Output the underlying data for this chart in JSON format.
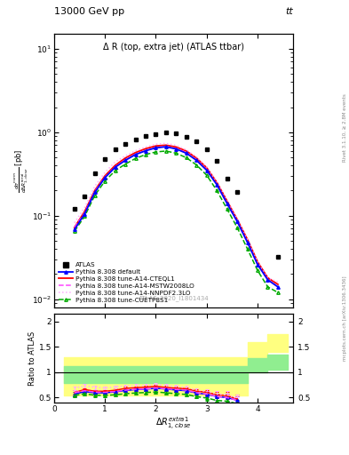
{
  "title_top": "13000 GeV pp",
  "title_top_right": "tt",
  "plot_title": "Δ R (top, extra jet) (ATLAS ttbar)",
  "ylabel_ratio": "Ratio to ATLAS",
  "watermark": "ATLAS_2020_I1801434",
  "rivet_label": "Rivet 3.1.10, ≥ 2.8M events",
  "mcplots_label": "mcplots.cern.ch [arXiv:1306.3436]",
  "atlas_x": [
    0.4,
    0.6,
    0.8,
    1.0,
    1.2,
    1.4,
    1.6,
    1.8,
    2.0,
    2.2,
    2.4,
    2.6,
    2.8,
    3.0,
    3.2,
    3.4,
    3.6,
    4.4
  ],
  "atlas_y": [
    0.12,
    0.17,
    0.32,
    0.48,
    0.62,
    0.72,
    0.82,
    0.9,
    0.95,
    1.0,
    0.97,
    0.88,
    0.78,
    0.62,
    0.45,
    0.28,
    0.19,
    0.032
  ],
  "x_data": [
    0.4,
    0.6,
    0.8,
    1.0,
    1.2,
    1.4,
    1.6,
    1.8,
    2.0,
    2.2,
    2.4,
    2.6,
    2.8,
    3.0,
    3.2,
    3.4,
    3.6,
    3.8,
    4.0,
    4.2,
    4.4
  ],
  "default_y": [
    0.068,
    0.105,
    0.19,
    0.285,
    0.38,
    0.46,
    0.54,
    0.6,
    0.65,
    0.67,
    0.63,
    0.56,
    0.46,
    0.35,
    0.235,
    0.14,
    0.085,
    0.048,
    0.026,
    0.017,
    0.014
  ],
  "cteql1_y": [
    0.072,
    0.112,
    0.2,
    0.3,
    0.4,
    0.49,
    0.57,
    0.635,
    0.685,
    0.7,
    0.665,
    0.595,
    0.49,
    0.375,
    0.25,
    0.15,
    0.09,
    0.052,
    0.028,
    0.018,
    0.015
  ],
  "mstw_y": [
    0.072,
    0.108,
    0.195,
    0.29,
    0.385,
    0.465,
    0.545,
    0.605,
    0.655,
    0.675,
    0.64,
    0.57,
    0.465,
    0.355,
    0.235,
    0.14,
    0.085,
    0.048,
    0.026,
    0.017,
    0.014
  ],
  "nnpdf_y": [
    0.082,
    0.125,
    0.225,
    0.33,
    0.44,
    0.52,
    0.6,
    0.665,
    0.72,
    0.735,
    0.695,
    0.615,
    0.505,
    0.385,
    0.255,
    0.155,
    0.092,
    0.052,
    0.028,
    0.018,
    0.016
  ],
  "cuetp_y": [
    0.065,
    0.098,
    0.175,
    0.26,
    0.345,
    0.415,
    0.485,
    0.54,
    0.58,
    0.595,
    0.56,
    0.495,
    0.405,
    0.305,
    0.2,
    0.12,
    0.072,
    0.04,
    0.022,
    0.014,
    0.012
  ],
  "ratio_x": [
    0.4,
    0.6,
    0.8,
    1.0,
    1.2,
    1.4,
    1.6,
    1.8,
    2.0,
    2.2,
    2.4,
    2.6,
    2.8,
    3.0,
    3.2,
    3.4,
    3.6
  ],
  "ratio_default": [
    0.567,
    0.618,
    0.594,
    0.594,
    0.613,
    0.639,
    0.659,
    0.667,
    0.684,
    0.67,
    0.649,
    0.636,
    0.59,
    0.565,
    0.522,
    0.5,
    0.447
  ],
  "ratio_cteql1": [
    0.6,
    0.659,
    0.625,
    0.625,
    0.645,
    0.681,
    0.695,
    0.706,
    0.721,
    0.7,
    0.685,
    0.676,
    0.628,
    0.605,
    0.556,
    0.536,
    0.474
  ],
  "ratio_mstw": [
    0.6,
    0.635,
    0.609,
    0.604,
    0.621,
    0.646,
    0.665,
    0.672,
    0.689,
    0.675,
    0.66,
    0.648,
    0.596,
    0.573,
    0.522,
    0.5,
    0.447
  ],
  "ratio_nnpdf": [
    0.683,
    0.735,
    0.703,
    0.688,
    0.71,
    0.722,
    0.732,
    0.739,
    0.758,
    0.735,
    0.716,
    0.699,
    0.647,
    0.621,
    0.567,
    0.554,
    0.484
  ],
  "ratio_cuetp": [
    0.542,
    0.576,
    0.547,
    0.542,
    0.556,
    0.576,
    0.591,
    0.6,
    0.611,
    0.595,
    0.577,
    0.562,
    0.519,
    0.492,
    0.444,
    0.429,
    0.379
  ],
  "ratio_yerr_default": [
    0.04,
    0.03,
    0.03,
    0.03,
    0.03,
    0.03,
    0.03,
    0.03,
    0.03,
    0.03,
    0.03,
    0.03,
    0.03,
    0.05,
    0.06,
    0.07,
    0.08
  ],
  "ratio_yerr_cteql1": [
    0.04,
    0.03,
    0.03,
    0.03,
    0.03,
    0.03,
    0.03,
    0.03,
    0.03,
    0.03,
    0.03,
    0.03,
    0.03,
    0.05,
    0.06,
    0.07,
    0.08
  ],
  "ratio_yerr_mstw": [
    0.04,
    0.03,
    0.03,
    0.03,
    0.03,
    0.03,
    0.03,
    0.03,
    0.03,
    0.03,
    0.03,
    0.03,
    0.03,
    0.05,
    0.06,
    0.07,
    0.08
  ],
  "ratio_yerr_nnpdf": [
    0.04,
    0.03,
    0.03,
    0.03,
    0.03,
    0.03,
    0.03,
    0.03,
    0.03,
    0.03,
    0.03,
    0.03,
    0.03,
    0.05,
    0.06,
    0.07,
    0.08
  ],
  "ratio_yerr_cuetp": [
    0.04,
    0.03,
    0.03,
    0.03,
    0.03,
    0.03,
    0.03,
    0.03,
    0.03,
    0.03,
    0.03,
    0.03,
    0.03,
    0.05,
    0.06,
    0.07,
    0.08
  ],
  "band_yellow_x": [
    0.2,
    0.4,
    0.6,
    0.8,
    1.0,
    1.2,
    1.4,
    1.6,
    1.8,
    2.0,
    2.2,
    2.4,
    2.6,
    2.8,
    3.0,
    3.2,
    3.4,
    3.6,
    3.8,
    4.0,
    4.2,
    4.4,
    4.6
  ],
  "band_yellow_lo": [
    0.55,
    0.55,
    0.55,
    0.55,
    0.55,
    0.55,
    0.55,
    0.55,
    0.55,
    0.55,
    0.55,
    0.55,
    0.55,
    0.55,
    0.55,
    0.55,
    0.55,
    0.55,
    1.3,
    1.3,
    1.4,
    1.4,
    1.4
  ],
  "band_yellow_hi": [
    1.3,
    1.3,
    1.3,
    1.3,
    1.3,
    1.3,
    1.3,
    1.3,
    1.3,
    1.3,
    1.3,
    1.3,
    1.3,
    1.3,
    1.3,
    1.3,
    1.3,
    1.3,
    1.6,
    1.6,
    1.75,
    1.75,
    1.75
  ],
  "band_green_x": [
    0.2,
    0.4,
    0.6,
    0.8,
    1.0,
    1.2,
    1.4,
    1.6,
    1.8,
    2.0,
    2.2,
    2.4,
    2.6,
    2.8,
    3.0,
    3.2,
    3.4,
    3.6,
    3.8,
    4.0,
    4.2,
    4.4,
    4.6
  ],
  "band_green_lo": [
    0.78,
    0.78,
    0.78,
    0.78,
    0.78,
    0.78,
    0.78,
    0.78,
    0.78,
    0.78,
    0.78,
    0.78,
    0.78,
    0.78,
    0.78,
    0.78,
    0.78,
    0.78,
    1.0,
    1.0,
    1.05,
    1.05,
    1.05
  ],
  "band_green_hi": [
    1.12,
    1.12,
    1.12,
    1.12,
    1.12,
    1.12,
    1.12,
    1.12,
    1.12,
    1.12,
    1.12,
    1.12,
    1.12,
    1.12,
    1.12,
    1.12,
    1.12,
    1.12,
    1.28,
    1.28,
    1.35,
    1.35,
    1.35
  ],
  "color_default": "#0000ff",
  "color_cteql1": "#ff0000",
  "color_mstw": "#ff44ff",
  "color_nnpdf": "#ffaaff",
  "color_cuetp": "#00aa00",
  "color_atlas": "#000000",
  "xlim": [
    0.0,
    4.7
  ],
  "ylim_main": [
    0.008,
    15.0
  ],
  "ylim_ratio": [
    0.4,
    2.15
  ],
  "ratio_yticks": [
    0.5,
    1.0,
    1.5,
    2.0
  ]
}
